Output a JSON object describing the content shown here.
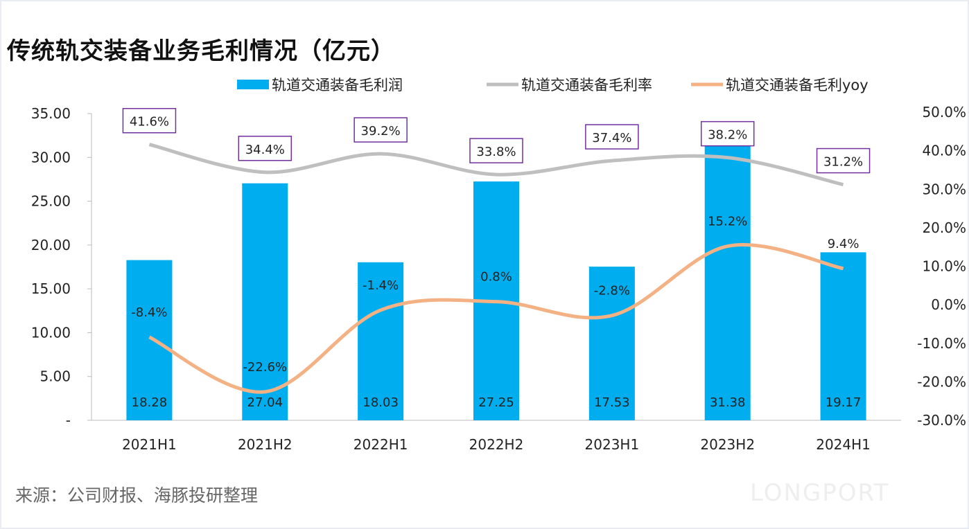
{
  "title": "传统轨交装备业务毛利情况（亿元）",
  "source": "来源：公司财报、海豚投研整理",
  "watermark": "LONGPORT",
  "colors": {
    "bar": "#00aeef",
    "rate": "#bfbfbf",
    "yoy": "#f4b183",
    "box": "#7030a0"
  },
  "chart_data": {
    "type": "bar",
    "title": "传统轨交装备业务毛利情况（亿元）",
    "categories": [
      "2021H1",
      "2021H2",
      "2022H1",
      "2022H2",
      "2023H1",
      "2023H2",
      "2024H1"
    ],
    "series": [
      {
        "name": "轨道交通装备毛利润",
        "type": "bar",
        "axis": "left",
        "values": [
          18.28,
          27.04,
          18.03,
          27.25,
          17.53,
          31.38,
          19.17
        ],
        "labels": [
          "18.28",
          "27.04",
          "18.03",
          "27.25",
          "17.53",
          "31.38",
          "19.17"
        ]
      },
      {
        "name": "轨道交通装备毛利率",
        "type": "line",
        "axis": "right",
        "values": [
          41.6,
          34.4,
          39.2,
          33.8,
          37.4,
          38.2,
          31.2
        ],
        "labels": [
          "41.6%",
          "34.4%",
          "39.2%",
          "33.8%",
          "37.4%",
          "38.2%",
          "31.2%"
        ]
      },
      {
        "name": "轨道交通装备毛利yoy",
        "type": "line",
        "axis": "right",
        "values": [
          -8.4,
          -22.6,
          -1.4,
          0.8,
          -2.8,
          15.2,
          9.4
        ],
        "labels": [
          "-8.4%",
          "-22.6%",
          "-1.4%",
          "0.8%",
          "-2.8%",
          "15.2%",
          "9.4%"
        ]
      }
    ],
    "left_axis": {
      "ylim": [
        0,
        35
      ],
      "ticks": [
        "-",
        "5.00",
        "10.00",
        "15.00",
        "20.00",
        "25.00",
        "30.00",
        "35.00"
      ]
    },
    "right_axis": {
      "ylim": [
        -30,
        50
      ],
      "ticks": [
        "-30.0%",
        "-20.0%",
        "-10.0%",
        "0.0%",
        "10.0%",
        "20.0%",
        "30.0%",
        "40.0%",
        "50.0%"
      ]
    },
    "legend": "top",
    "grid": false
  }
}
